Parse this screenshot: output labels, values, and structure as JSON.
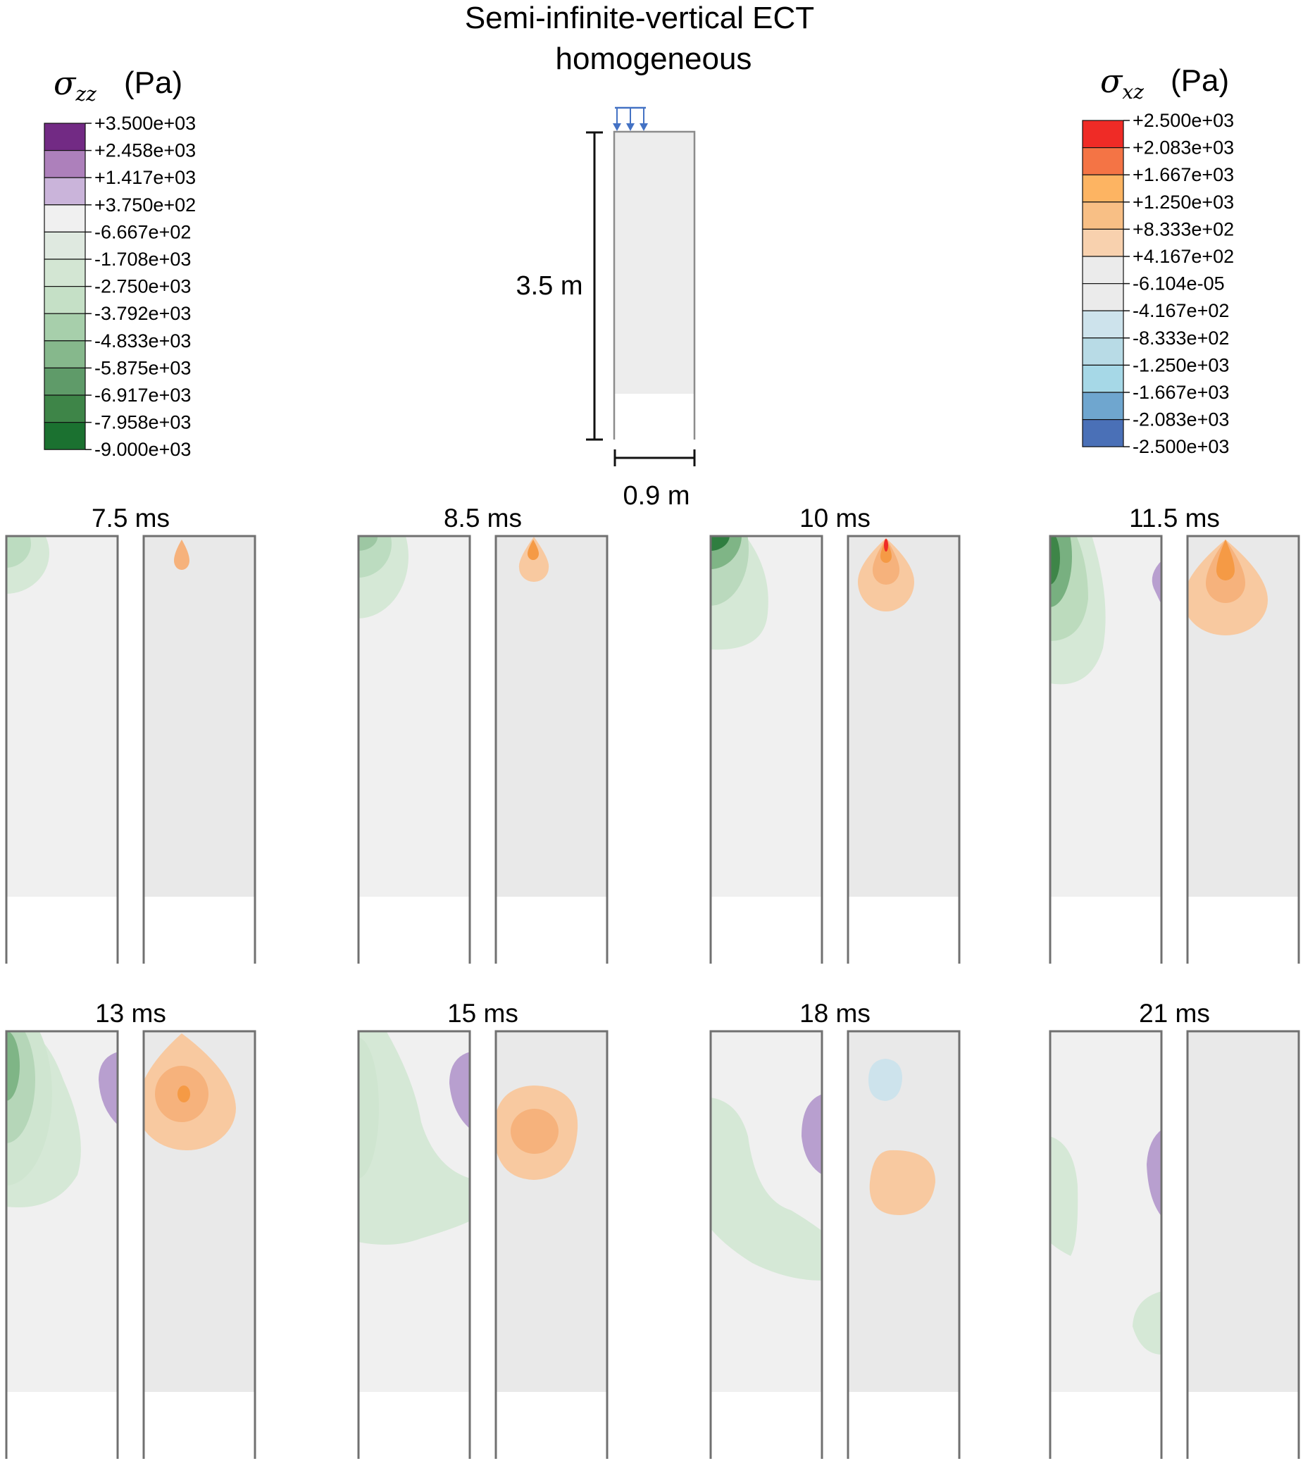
{
  "title": {
    "line1": "Semi-infinite-vertical ECT",
    "line2": "homogeneous"
  },
  "colorbar_zz": {
    "symbol": "σ",
    "subscript": "zz",
    "unit": "(Pa)",
    "ticks": [
      "+3.500e+03",
      "+2.458e+03",
      "+1.417e+03",
      "+3.750e+02",
      "-6.667e+02",
      "-1.708e+03",
      "-2.750e+03",
      "-3.792e+03",
      "-4.833e+03",
      "-5.875e+03",
      "-6.917e+03",
      "-7.958e+03",
      "-9.000e+03"
    ],
    "colors": [
      "#722a84",
      "#ad80bb",
      "#cab4da",
      "#f0f0f0",
      "#dfe9e0",
      "#d3e6d3",
      "#c5e0c6",
      "#a7cfab",
      "#86b88c",
      "#5f9b69",
      "#3e8548",
      "#1b7130"
    ]
  },
  "colorbar_xz": {
    "symbol": "σ",
    "subscript": "xz",
    "unit": "(Pa)",
    "ticks": [
      "+2.500e+03",
      "+2.083e+03",
      "+1.667e+03",
      "+1.250e+03",
      "+8.333e+02",
      "+4.167e+02",
      "-6.104e-05",
      "-4.167e+02",
      "-8.333e+02",
      "-1.250e+03",
      "-1.667e+03",
      "-2.083e+03",
      "-2.500e+03"
    ],
    "colors": [
      "#ef2b26",
      "#f47445",
      "#fdb462",
      "#f8bf85",
      "#f8d1ae",
      "#ebebeb",
      "#ebebeb",
      "#cde3ec",
      "#b8dbe6",
      "#a6d8e7",
      "#6fa6cf",
      "#4a70b7"
    ]
  },
  "schematic": {
    "height_label": "3.5 m",
    "width_label": "0.9 m",
    "load_color": "#4472c4"
  },
  "colors": {
    "zz_background": "#f0f0f0",
    "xz_background": "#e9e9e9",
    "frame": "#707070",
    "green_light": "#d5e8d6",
    "green_mid": "#bcdcc0",
    "purple_light": "#b89fcf",
    "orange_light": "#f8c9a0",
    "orange_mid": "#f6b27c",
    "orange_dark": "#f59a45",
    "blue_light": "#cde3ec"
  },
  "snapshots": [
    {
      "time": "7.5 ms"
    },
    {
      "time": "8.5 ms"
    },
    {
      "time": "10 ms"
    },
    {
      "time": "11.5 ms"
    },
    {
      "time": "13 ms"
    },
    {
      "time": "15 ms"
    },
    {
      "time": "18 ms"
    },
    {
      "time": "21 ms"
    }
  ]
}
